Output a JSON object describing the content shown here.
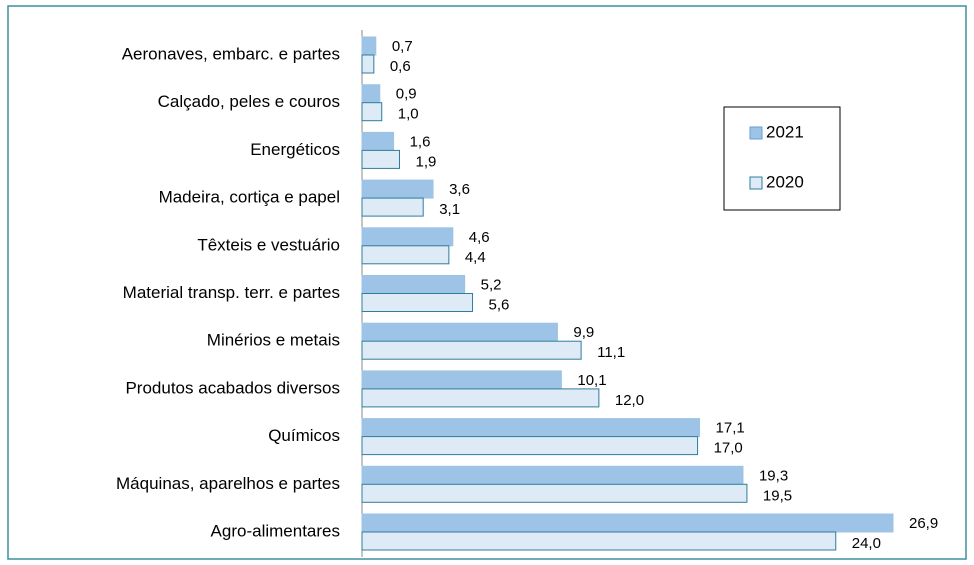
{
  "chart_data": {
    "type": "hbar",
    "categories": [
      "Aeronaves, embarc. e partes",
      "Calçado, peles e couros",
      "Energéticos",
      "Madeira, cortiça e papel",
      "Têxteis e vestuário",
      "Material transp. terr. e partes",
      "Minérios e metais",
      "Produtos acabados diversos",
      "Químicos",
      "Máquinas, aparelhos e partes",
      "Agro-alimentares"
    ],
    "series": [
      {
        "name": "2021",
        "color": "#9dc3e6",
        "stroke": "#9dc3e6",
        "values": [
          0.7,
          0.9,
          1.6,
          3.6,
          4.6,
          5.2,
          9.9,
          10.1,
          17.1,
          19.3,
          26.9
        ],
        "value_labels": [
          "0,7",
          "0,9",
          "1,6",
          "3,6",
          "4,6",
          "5,2",
          "9,9",
          "10,1",
          "17,1",
          "19,3",
          "26,9"
        ]
      },
      {
        "name": "2020",
        "color": "#deebf7",
        "stroke": "#2e7d9a",
        "values": [
          0.6,
          1.0,
          1.9,
          3.1,
          4.4,
          5.6,
          11.1,
          12.0,
          17.0,
          19.5,
          24.0
        ],
        "value_labels": [
          "0,6",
          "1,0",
          "1,9",
          "3,1",
          "4,4",
          "5,6",
          "11,1",
          "12,0",
          "17,0",
          "19,5",
          "24,0"
        ]
      }
    ],
    "legend": "right"
  }
}
